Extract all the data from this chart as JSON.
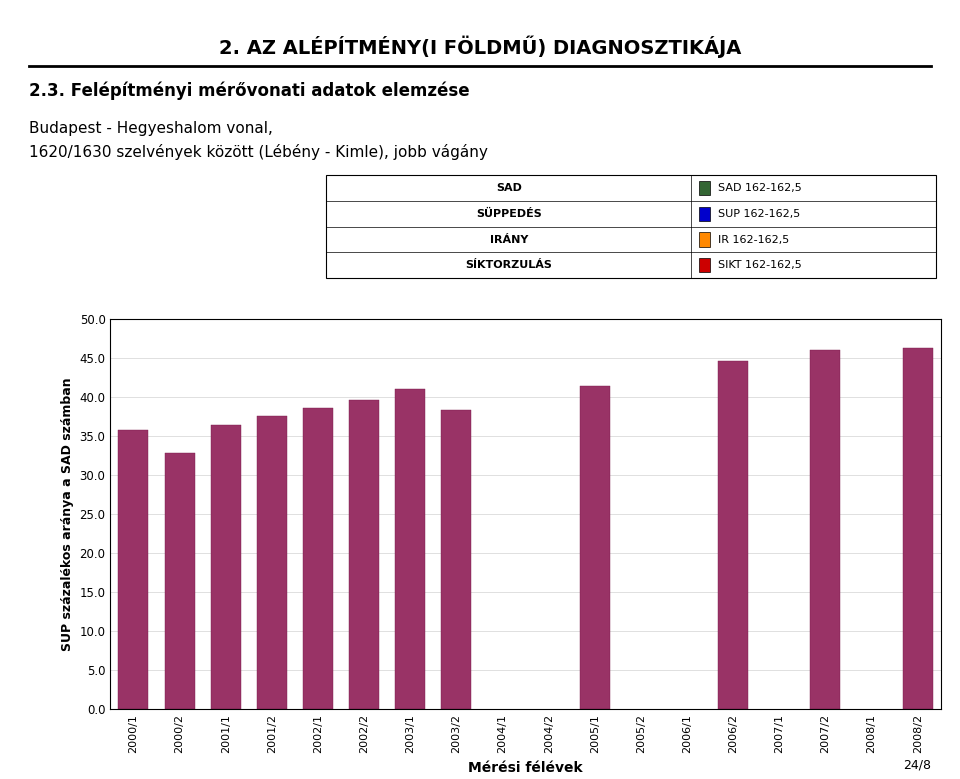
{
  "title": "2. AZ ALÉPÍTMÉNY(I FÖLDMŰ) DIAGNOSZTIKÁJA",
  "subtitle": "2.3. Felépítményi mérővonati adatok elemzése",
  "description_line1": "Budapest - Hegyeshalom vonal,",
  "description_line2": "1620/1630 szelvények között (Lébény - Kimle), jobb vágány",
  "ylabel": "SUP százalékos aránya a SAD számban",
  "xlabel": "Mérési félévek",
  "categories": [
    "2000/1",
    "2000/2",
    "2001/1",
    "2001/2",
    "2002/1",
    "2002/2",
    "2003/1",
    "2003/2",
    "2004/1",
    "2004/2",
    "2005/1",
    "2005/2",
    "2006/1",
    "2006/2",
    "2007/1",
    "2007/2",
    "2008/1",
    "2008/2"
  ],
  "values": [
    35.8,
    32.9,
    36.4,
    37.6,
    38.6,
    39.6,
    41.1,
    38.4,
    null,
    null,
    41.5,
    null,
    null,
    44.7,
    null,
    46.1,
    null,
    46.3
  ],
  "bar_color": "#993366",
  "ylim_min": 0.0,
  "ylim_max": 50.0,
  "yticks": [
    0.0,
    5.0,
    10.0,
    15.0,
    20.0,
    25.0,
    30.0,
    35.0,
    40.0,
    45.0,
    50.0
  ],
  "legend_left_labels": [
    "SAD",
    "SÜPPEDÉS",
    "IRÁNY",
    "SÍKTORZULÁS"
  ],
  "legend_right_labels": [
    "SAD 162-162,5",
    "SUP 162-162,5",
    "IR 162-162,5",
    "SIKT 162-162,5"
  ],
  "legend_colors": [
    "#336633",
    "#0000cc",
    "#ff8800",
    "#cc0000"
  ],
  "page_number": "24/8",
  "background_color": "#ffffff"
}
